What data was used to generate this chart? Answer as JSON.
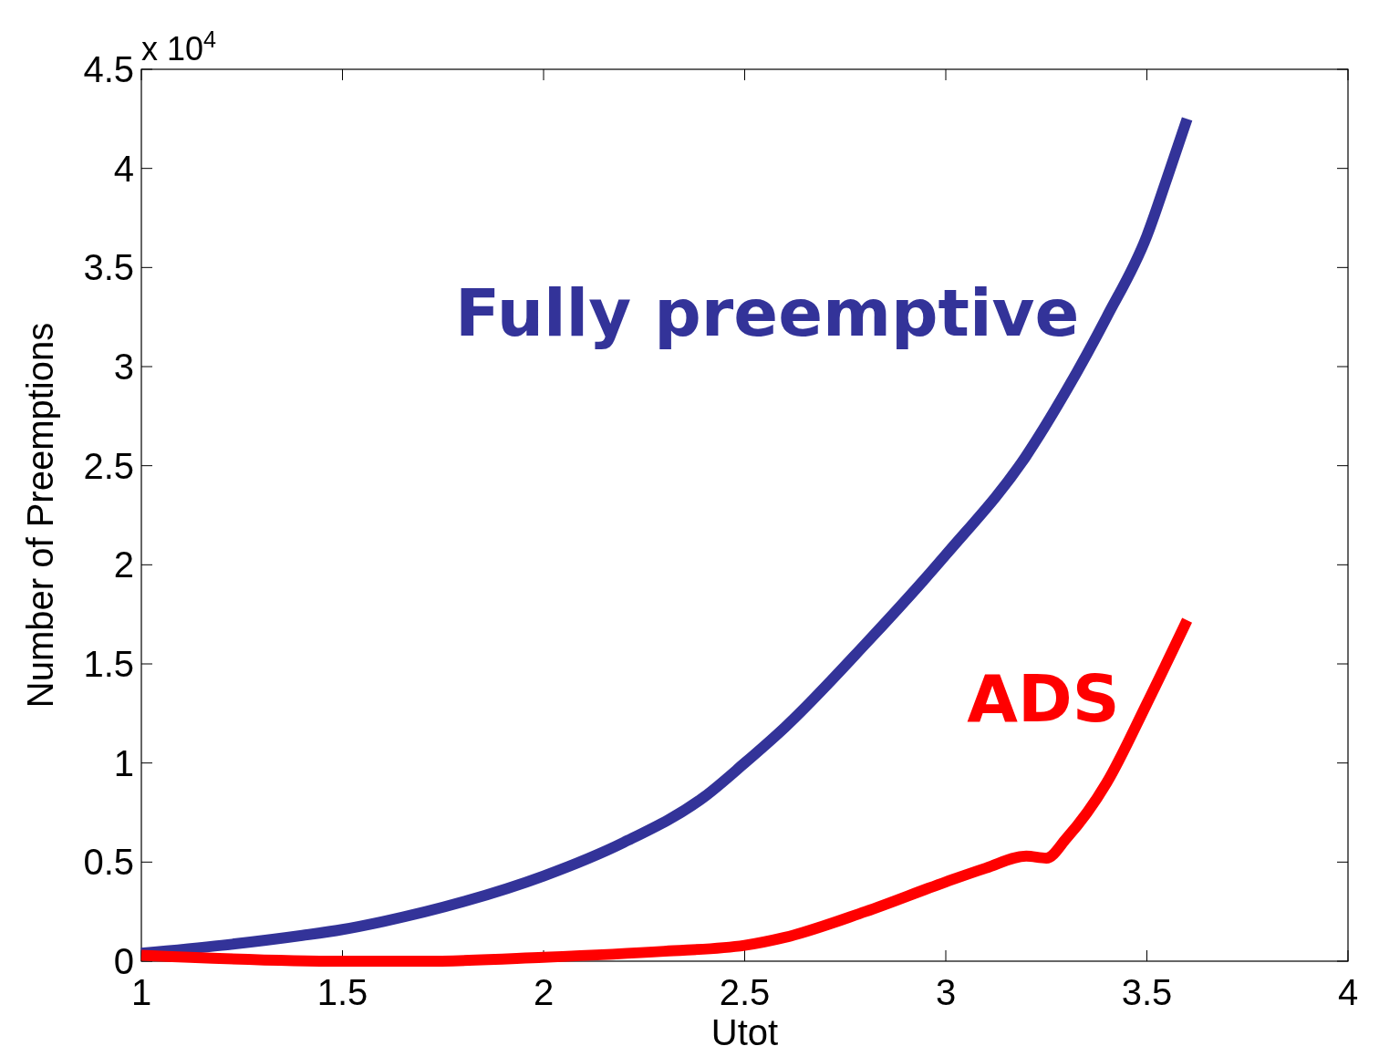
{
  "chart_data": {
    "type": "line",
    "xlabel": "Utot",
    "ylabel": "Number of Preemptions",
    "annotations": [
      "x 10$^{4}$"
    ],
    "xlim": [
      1,
      4
    ],
    "xticks": [
      1,
      1.5,
      2,
      2.5,
      3,
      3.5,
      4
    ],
    "ylim": [
      0,
      4.5
    ],
    "yticks": [
      0,
      0.5,
      1,
      1.5,
      2,
      2.5,
      3,
      3.5,
      4,
      4.5
    ],
    "grid": false,
    "marker": "none",
    "line_style": "solid",
    "series": [
      {
        "name": "Fully preemptive",
        "color": "#333399",
        "x": [
          1,
          1.2,
          1.4,
          1.5,
          1.6,
          1.8,
          2.0,
          2.2,
          2.4,
          2.5,
          2.6,
          2.8,
          3.0,
          3.2,
          3.3,
          3.4,
          3.5,
          3.55,
          3.6
        ],
        "values": [
          0.04,
          0.08,
          0.13,
          0.16,
          0.2,
          0.3,
          0.43,
          0.6,
          0.83,
          1.0,
          1.18,
          1.6,
          2.05,
          2.55,
          2.88,
          3.25,
          3.66,
          3.95,
          4.25
        ]
      },
      {
        "name": "ADS",
        "color": "#ff0000",
        "x": [
          1,
          1.5,
          1.7,
          2.0,
          2.3,
          2.5,
          2.6,
          2.8,
          3.0,
          3.1,
          3.2,
          3.25,
          3.3,
          3.4,
          3.5,
          3.6
        ],
        "values": [
          0.03,
          0.0,
          0.0,
          0.02,
          0.05,
          0.08,
          0.12,
          0.25,
          0.4,
          0.47,
          0.53,
          0.52,
          0.62,
          0.9,
          1.3,
          1.72
        ]
      }
    ]
  }
}
